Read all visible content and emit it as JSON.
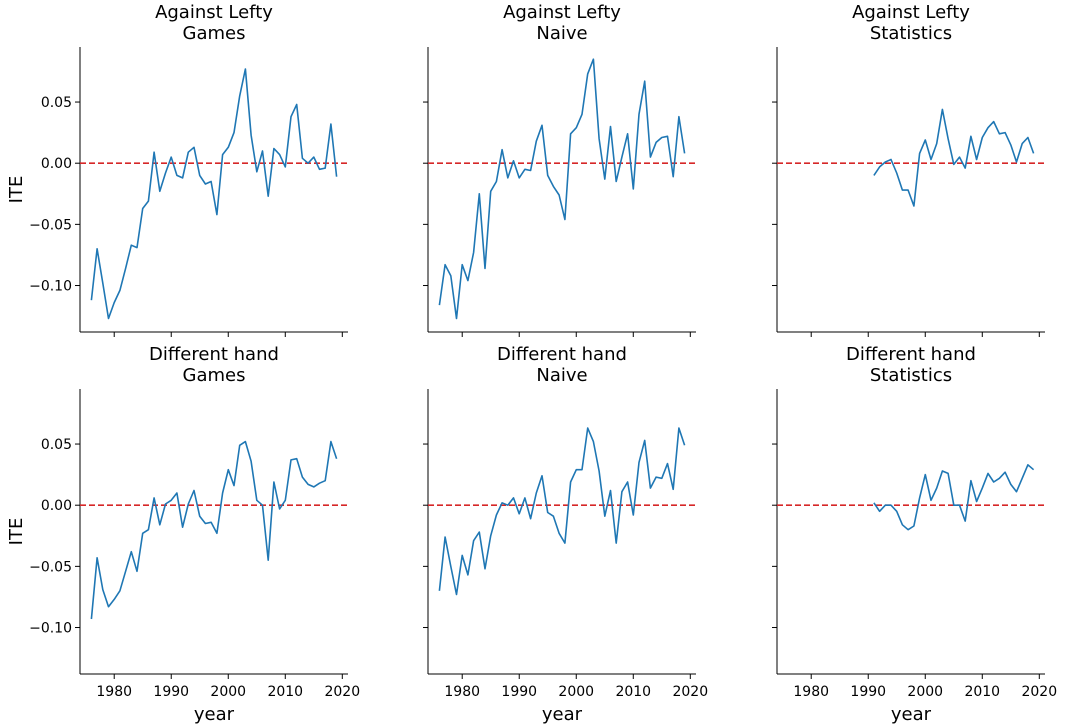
{
  "figure": {
    "shared_y_label": "ITE",
    "shared_x_label": "year"
  },
  "chart_data": [
    {
      "type": "line",
      "title": "Against Lefty\nGames",
      "xlabel": "",
      "ylabel": "ITE",
      "xlim": [
        1974,
        2021
      ],
      "ylim": [
        -0.138,
        0.095
      ],
      "xticks": [
        1980,
        1990,
        2000,
        2010,
        2020
      ],
      "yticks": [
        -0.1,
        -0.05,
        0.0,
        0.05
      ],
      "ytick_labels": [
        "−0.10",
        "−0.05",
        "0.00",
        "0.05"
      ],
      "reference_line": {
        "y": 0.0,
        "color": "#d62728",
        "style": "dashed"
      },
      "series": [
        {
          "color": "#1f77b4",
          "x": [
            1976,
            1977,
            1978,
            1979,
            1980,
            1981,
            1982,
            1983,
            1984,
            1985,
            1986,
            1987,
            1988,
            1989,
            1990,
            1991,
            1992,
            1993,
            1994,
            1995,
            1996,
            1997,
            1998,
            1999,
            2000,
            2001,
            2002,
            2003,
            2004,
            2005,
            2006,
            2007,
            2008,
            2009,
            2010,
            2011,
            2012,
            2013,
            2014,
            2015,
            2016,
            2017,
            2018,
            2019
          ],
          "y": [
            -0.112,
            -0.07,
            -0.098,
            -0.127,
            -0.114,
            -0.104,
            -0.086,
            -0.067,
            -0.069,
            -0.037,
            -0.031,
            0.009,
            -0.023,
            -0.008,
            0.005,
            -0.01,
            -0.012,
            0.009,
            0.013,
            -0.01,
            -0.017,
            -0.015,
            -0.042,
            0.007,
            0.013,
            0.025,
            0.055,
            0.077,
            0.023,
            -0.007,
            0.01,
            -0.027,
            0.012,
            0.007,
            -0.003,
            0.038,
            0.048,
            0.004,
            0.0,
            0.005,
            -0.005,
            -0.004,
            0.032,
            -0.011
          ]
        }
      ]
    },
    {
      "type": "line",
      "title": "Against Lefty\nNaive",
      "xlabel": "",
      "ylabel": "",
      "xlim": [
        1974,
        2021
      ],
      "ylim": [
        -0.138,
        0.095
      ],
      "xticks": [
        1980,
        1990,
        2000,
        2010,
        2020
      ],
      "yticks": [
        -0.1,
        -0.05,
        0.0,
        0.05
      ],
      "reference_line": {
        "y": 0.0,
        "color": "#d62728",
        "style": "dashed"
      },
      "series": [
        {
          "color": "#1f77b4",
          "x": [
            1976,
            1977,
            1978,
            1979,
            1980,
            1981,
            1982,
            1983,
            1984,
            1985,
            1986,
            1987,
            1988,
            1989,
            1990,
            1991,
            1992,
            1993,
            1994,
            1995,
            1996,
            1997,
            1998,
            1999,
            2000,
            2001,
            2002,
            2003,
            2004,
            2005,
            2006,
            2007,
            2008,
            2009,
            2010,
            2011,
            2012,
            2013,
            2014,
            2015,
            2016,
            2017,
            2018,
            2019
          ],
          "y": [
            -0.116,
            -0.083,
            -0.092,
            -0.127,
            -0.083,
            -0.096,
            -0.073,
            -0.025,
            -0.086,
            -0.023,
            -0.015,
            0.011,
            -0.012,
            0.002,
            -0.012,
            -0.005,
            -0.006,
            0.018,
            0.031,
            -0.01,
            -0.019,
            -0.026,
            -0.046,
            0.024,
            0.029,
            0.04,
            0.073,
            0.085,
            0.02,
            -0.013,
            0.03,
            -0.015,
            0.005,
            0.024,
            -0.021,
            0.04,
            0.067,
            0.005,
            0.017,
            0.021,
            0.022,
            -0.011,
            0.038,
            0.008
          ]
        }
      ]
    },
    {
      "type": "line",
      "title": "Against Lefty\nStatistics",
      "xlabel": "",
      "ylabel": "",
      "xlim": [
        1974,
        2021
      ],
      "ylim": [
        -0.138,
        0.095
      ],
      "xticks": [
        1980,
        1990,
        2000,
        2010,
        2020
      ],
      "yticks": [
        -0.1,
        -0.05,
        0.0,
        0.05
      ],
      "reference_line": {
        "y": 0.0,
        "color": "#d62728",
        "style": "dashed"
      },
      "series": [
        {
          "color": "#1f77b4",
          "x": [
            1991,
            1992,
            1993,
            1994,
            1995,
            1996,
            1997,
            1998,
            1999,
            2000,
            2001,
            2002,
            2003,
            2004,
            2005,
            2006,
            2007,
            2008,
            2009,
            2010,
            2011,
            2012,
            2013,
            2014,
            2015,
            2016,
            2017,
            2018,
            2019
          ],
          "y": [
            -0.01,
            -0.003,
            0.001,
            0.003,
            -0.008,
            -0.022,
            -0.022,
            -0.035,
            0.008,
            0.019,
            0.003,
            0.016,
            0.044,
            0.02,
            -0.001,
            0.005,
            -0.004,
            0.022,
            0.003,
            0.021,
            0.029,
            0.034,
            0.024,
            0.025,
            0.015,
            0.001,
            0.016,
            0.021,
            0.008
          ]
        }
      ]
    },
    {
      "type": "line",
      "title": "Different hand\nGames",
      "xlabel": "year",
      "ylabel": "ITE",
      "xlim": [
        1974,
        2021
      ],
      "ylim": [
        -0.138,
        0.095
      ],
      "xticks": [
        1980,
        1990,
        2000,
        2010,
        2020
      ],
      "xtick_labels": [
        "1980",
        "1990",
        "2000",
        "2010",
        "2020"
      ],
      "yticks": [
        -0.1,
        -0.05,
        0.0,
        0.05
      ],
      "ytick_labels": [
        "−0.10",
        "−0.05",
        "0.00",
        "0.05"
      ],
      "reference_line": {
        "y": 0.0,
        "color": "#d62728",
        "style": "dashed"
      },
      "series": [
        {
          "color": "#1f77b4",
          "x": [
            1976,
            1977,
            1978,
            1979,
            1980,
            1981,
            1982,
            1983,
            1984,
            1985,
            1986,
            1987,
            1988,
            1989,
            1990,
            1991,
            1992,
            1993,
            1994,
            1995,
            1996,
            1997,
            1998,
            1999,
            2000,
            2001,
            2002,
            2003,
            2004,
            2005,
            2006,
            2007,
            2008,
            2009,
            2010,
            2011,
            2012,
            2013,
            2014,
            2015,
            2016,
            2017,
            2018,
            2019
          ],
          "y": [
            -0.093,
            -0.043,
            -0.069,
            -0.083,
            -0.077,
            -0.07,
            -0.054,
            -0.038,
            -0.054,
            -0.023,
            -0.02,
            0.006,
            -0.016,
            0.001,
            0.004,
            0.01,
            -0.018,
            0.001,
            0.012,
            -0.009,
            -0.015,
            -0.014,
            -0.023,
            0.01,
            0.029,
            0.016,
            0.049,
            0.052,
            0.036,
            0.004,
            0.0,
            -0.045,
            0.019,
            -0.003,
            0.004,
            0.037,
            0.038,
            0.023,
            0.017,
            0.015,
            0.018,
            0.02,
            0.052,
            0.038
          ]
        }
      ]
    },
    {
      "type": "line",
      "title": "Different hand\nNaive",
      "xlabel": "year",
      "ylabel": "",
      "xlim": [
        1974,
        2021
      ],
      "ylim": [
        -0.138,
        0.095
      ],
      "xticks": [
        1980,
        1990,
        2000,
        2010,
        2020
      ],
      "xtick_labels": [
        "1980",
        "1990",
        "2000",
        "2010",
        "2020"
      ],
      "yticks": [
        -0.1,
        -0.05,
        0.0,
        0.05
      ],
      "reference_line": {
        "y": 0.0,
        "color": "#d62728",
        "style": "dashed"
      },
      "series": [
        {
          "color": "#1f77b4",
          "x": [
            1976,
            1977,
            1978,
            1979,
            1980,
            1981,
            1982,
            1983,
            1984,
            1985,
            1986,
            1987,
            1988,
            1989,
            1990,
            1991,
            1992,
            1993,
            1994,
            1995,
            1996,
            1997,
            1998,
            1999,
            2000,
            2001,
            2002,
            2003,
            2004,
            2005,
            2006,
            2007,
            2008,
            2009,
            2010,
            2011,
            2012,
            2013,
            2014,
            2015,
            2016,
            2017,
            2018,
            2019
          ],
          "y": [
            -0.07,
            -0.026,
            -0.05,
            -0.073,
            -0.041,
            -0.057,
            -0.029,
            -0.022,
            -0.052,
            -0.025,
            -0.008,
            0.002,
            0.0,
            0.006,
            -0.007,
            0.006,
            -0.011,
            0.01,
            0.024,
            -0.006,
            -0.009,
            -0.023,
            -0.031,
            0.019,
            0.029,
            0.029,
            0.063,
            0.052,
            0.028,
            -0.009,
            0.012,
            -0.031,
            0.011,
            0.019,
            -0.008,
            0.035,
            0.053,
            0.014,
            0.023,
            0.022,
            0.034,
            0.013,
            0.063,
            0.049
          ]
        }
      ]
    },
    {
      "type": "line",
      "title": "Different hand\nStatistics",
      "xlabel": "year",
      "ylabel": "",
      "xlim": [
        1974,
        2021
      ],
      "ylim": [
        -0.138,
        0.095
      ],
      "xticks": [
        1980,
        1990,
        2000,
        2010,
        2020
      ],
      "xtick_labels": [
        "1980",
        "1990",
        "2000",
        "2010",
        "2020"
      ],
      "yticks": [
        -0.1,
        -0.05,
        0.0,
        0.05
      ],
      "reference_line": {
        "y": 0.0,
        "color": "#d62728",
        "style": "dashed"
      },
      "series": [
        {
          "color": "#1f77b4",
          "x": [
            1991,
            1992,
            1993,
            1994,
            1995,
            1996,
            1997,
            1998,
            1999,
            2000,
            2001,
            2002,
            2003,
            2004,
            2005,
            2006,
            2007,
            2008,
            2009,
            2010,
            2011,
            2012,
            2013,
            2014,
            2015,
            2016,
            2017,
            2018,
            2019
          ],
          "y": [
            0.002,
            -0.005,
            0.0,
            0.0,
            -0.005,
            -0.016,
            -0.02,
            -0.017,
            0.006,
            0.025,
            0.004,
            0.014,
            0.028,
            0.026,
            0.0,
            0.0,
            -0.013,
            0.02,
            0.003,
            0.014,
            0.026,
            0.019,
            0.022,
            0.027,
            0.017,
            0.011,
            0.022,
            0.033,
            0.029
          ]
        }
      ]
    }
  ]
}
